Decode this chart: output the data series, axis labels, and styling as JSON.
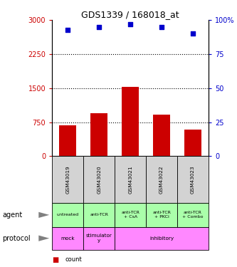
{
  "title": "GDS1339 / 168018_at",
  "samples": [
    "GSM43019",
    "GSM43020",
    "GSM43021",
    "GSM43022",
    "GSM43023"
  ],
  "counts": [
    680,
    950,
    1530,
    920,
    590
  ],
  "percentile_ranks": [
    93,
    95,
    97,
    95,
    90
  ],
  "ylim_left": [
    0,
    3000
  ],
  "ylim_right": [
    0,
    100
  ],
  "yticks_left": [
    0,
    750,
    1500,
    2250,
    3000
  ],
  "yticks_left_labels": [
    "0",
    "750",
    "1500",
    "2250",
    "3000"
  ],
  "yticks_right": [
    0,
    25,
    50,
    75,
    100
  ],
  "yticks_right_labels": [
    "0",
    "25",
    "50",
    "75",
    "100%"
  ],
  "bar_color": "#cc0000",
  "scatter_color": "#0000cc",
  "agent_labels": [
    "untreated",
    "anti-TCR",
    "anti-TCR\n+ CsA",
    "anti-TCR\n+ PKCi",
    "anti-TCR\n+ Combo"
  ],
  "protocol_groups": [
    {
      "label": "mock",
      "start": 0,
      "end": 1,
      "color": "#ff88ff"
    },
    {
      "label": "stimulator\ny",
      "start": 1,
      "end": 2,
      "color": "#ff88ff"
    },
    {
      "label": "inhibitory",
      "start": 2,
      "end": 5,
      "color": "#ff88ff"
    }
  ],
  "sample_box_color": "#d3d3d3",
  "agent_color": "#aaffaa",
  "legend_count_color": "#cc0000",
  "legend_pct_color": "#0000cc"
}
